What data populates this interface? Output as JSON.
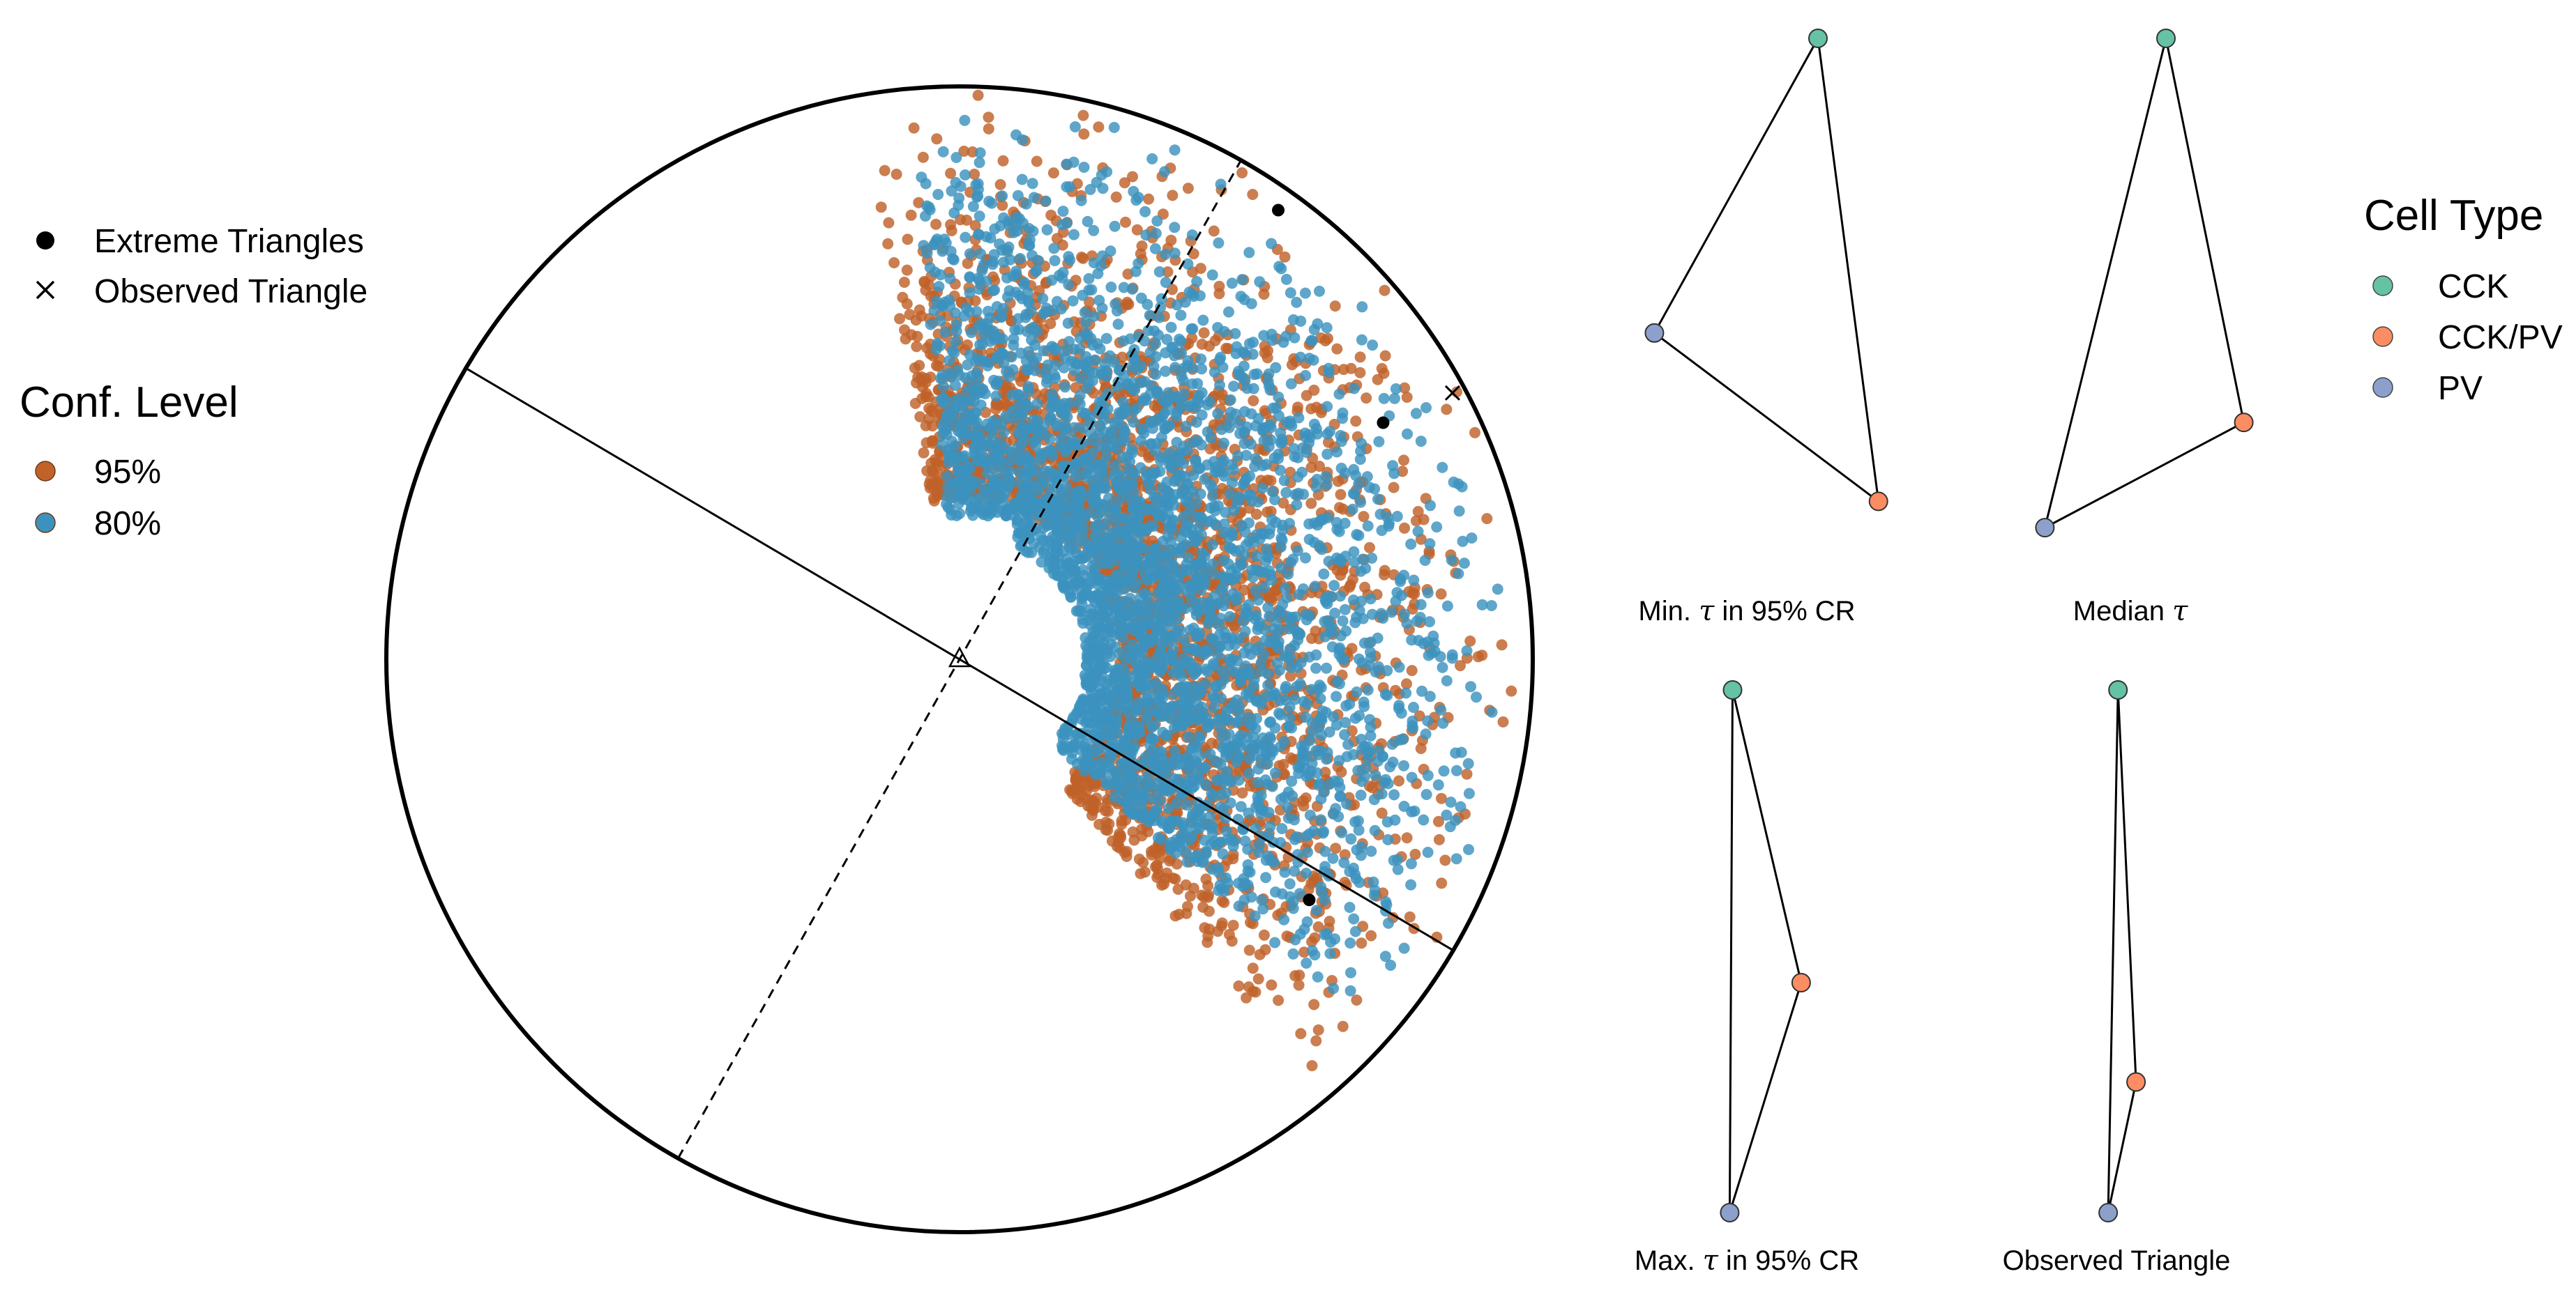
{
  "colors": {
    "ci95": "#C0622A",
    "ci80": "#3C92BE",
    "cck": "#66C2A5",
    "cckpv": "#FC8D62",
    "pv": "#8DA0CB",
    "extreme": "#000000",
    "line": "#000000"
  },
  "legend_points": {
    "extreme_label": "Extreme Triangles",
    "observed_label": "Observed Triangle"
  },
  "legend_conf": {
    "title": "Conf. Level",
    "items": [
      {
        "label": "95%",
        "color": "#C0622A"
      },
      {
        "label": "80%",
        "color": "#3C92BE"
      }
    ]
  },
  "legend_cell": {
    "title": "Cell Type",
    "items": [
      {
        "label": "CCK",
        "color": "#66C2A5"
      },
      {
        "label": "CCK/PV",
        "color": "#FC8D62"
      },
      {
        "label": "PV",
        "color": "#8DA0CB"
      }
    ]
  },
  "chart_data": [
    {
      "type": "scatter",
      "title": "",
      "description_units": "shape-space disk, radius normalized to 1, center (0,0); y up",
      "xlim": [
        -1,
        1
      ],
      "ylim": [
        -1,
        1
      ],
      "grid": false,
      "axes": {
        "solid_line": {
          "from": [
            -0.861,
            0.508
          ],
          "to": [
            0.861,
            -0.508
          ]
        },
        "dashed_line": {
          "from": [
            -0.491,
            -0.871
          ],
          "to": [
            0.491,
            0.871
          ]
        },
        "center_marker": {
          "shape": "triangle",
          "at": [
            0.0,
            0.0
          ]
        }
      },
      "series": [
        {
          "name": "95%",
          "description": "95% credible region point cloud",
          "region": {
            "center": [
              0.62,
              0.38
            ],
            "radius_min": 0.28,
            "radius_max": 1.0,
            "angle_min_deg": -50,
            "angle_max_deg": 100
          }
        },
        {
          "name": "80%",
          "description": "80% credible region point cloud",
          "region": {
            "center": [
              0.62,
              0.45
            ],
            "radius_min": 0.22,
            "radius_max": 0.97,
            "angle_min_deg": -42,
            "angle_max_deg": 95
          }
        },
        {
          "name": "Extreme Triangles",
          "points": [
            [
              0.556,
              0.784
            ],
            [
              0.739,
              0.413
            ],
            [
              0.61,
              -0.42
            ]
          ]
        },
        {
          "name": "Observed Triangle",
          "points": [
            [
              0.86,
              0.465
            ]
          ]
        }
      ]
    },
    {
      "type": "triangle",
      "caption_main": "Min. ",
      "caption_symbol": "τ",
      "caption_tail": " in 95% CR",
      "vertices": [
        {
          "cell": "CCK",
          "x": 0.7,
          "y": 1.0
        },
        {
          "cell": "CCK/PV",
          "x": 0.87,
          "y": 0.12
        },
        {
          "cell": "PV",
          "x": 0.24,
          "y": 0.44
        }
      ]
    },
    {
      "type": "triangle",
      "caption_main": "Median ",
      "caption_symbol": "τ",
      "caption_tail": "",
      "vertices": [
        {
          "cell": "CCK",
          "x": 0.6,
          "y": 1.0
        },
        {
          "cell": "CCK/PV",
          "x": 0.96,
          "y": 0.27
        },
        {
          "cell": "PV",
          "x": 0.04,
          "y": 0.07
        }
      ]
    },
    {
      "type": "triangle",
      "caption_main": "Max. ",
      "caption_symbol": "τ",
      "caption_tail": " in 95% CR",
      "vertices": [
        {
          "cell": "CCK",
          "x": 0.45,
          "y": 1.0
        },
        {
          "cell": "CCK/PV",
          "x": 0.69,
          "y": 0.44
        },
        {
          "cell": "PV",
          "x": 0.44,
          "y": 0.0
        }
      ]
    },
    {
      "type": "triangle",
      "caption_main": "Observed Triangle",
      "caption_symbol": "",
      "caption_tail": "",
      "vertices": [
        {
          "cell": "CCK",
          "x": 0.52,
          "y": 1.0
        },
        {
          "cell": "CCK/PV",
          "x": 0.63,
          "y": 0.25
        },
        {
          "cell": "PV",
          "x": 0.46,
          "y": 0.0
        }
      ]
    }
  ]
}
